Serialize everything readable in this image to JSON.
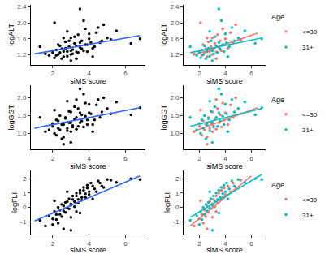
{
  "chart_data": [
    {
      "type": "scatter",
      "x_label": "siMS score",
      "y_label": "logALT",
      "xlim": [
        0.8,
        7.1
      ],
      "xticks": [
        2,
        4,
        6
      ],
      "ylim": [
        0.95,
        2.45
      ],
      "yticks": [
        1.2,
        1.6,
        {
          "value": 2,
          "label": "2.0"
        },
        2.4
      ],
      "grid": false,
      "series": [
        {
          "color": "#000000",
          "x": [
            1.6,
            2.0,
            2.2,
            2.3,
            2.4,
            2.5,
            2.6,
            2.7,
            2.8,
            2.9,
            3.0,
            3.0,
            3.1,
            3.2,
            3.3,
            3.4,
            3.5,
            3.6,
            3.7,
            3.8,
            3.9,
            4.0,
            4.2,
            4.4,
            4.6,
            4.8,
            5.2,
            2.1,
            2.6,
            3.3,
            1.3,
            1.8,
            2.0,
            2.1,
            2.2,
            2.3,
            2.4,
            2.5,
            2.6,
            2.7,
            2.8,
            2.9,
            3.0,
            3.1,
            3.2,
            3.3,
            3.4,
            3.5,
            3.6,
            3.7,
            3.8,
            3.9,
            4.0,
            4.1,
            4.3,
            4.5,
            4.7,
            5.0,
            5.5,
            6.3,
            6.8,
            3.5,
            2.8,
            4.2,
            3.0
          ],
          "y": [
            1.22,
            1.3,
            1.18,
            1.45,
            1.25,
            1.35,
            1.15,
            1.52,
            1.28,
            1.4,
            1.2,
            1.62,
            1.33,
            1.48,
            1.27,
            1.7,
            1.38,
            1.55,
            1.3,
            1.85,
            1.45,
            1.6,
            1.36,
            1.75,
            1.5,
            1.95,
            1.58,
            2.0,
            1.62,
            1.1,
            1.4,
            1.18,
            1.25,
            1.12,
            1.32,
            1.2,
            1.42,
            1.1,
            1.28,
            1.36,
            1.16,
            1.55,
            1.3,
            1.22,
            1.65,
            1.42,
            1.25,
            1.5,
            1.35,
            2.05,
            1.45,
            1.28,
            1.72,
            1.5,
            1.4,
            1.88,
            1.55,
            1.62,
            1.8,
            1.48,
            1.6,
            2.35,
            1.78,
            1.15,
            1.05
          ],
          "fit": {
            "color": "#3366ff",
            "x": [
              1.0,
              6.8
            ],
            "y": [
              1.22,
              1.68
            ]
          }
        }
      ]
    },
    {
      "type": "scatter",
      "x_label": "siMS score",
      "y_label": "logALT",
      "xlim": [
        0.8,
        7.1
      ],
      "xticks": [
        2,
        4,
        6
      ],
      "ylim": [
        0.95,
        2.45
      ],
      "yticks": [
        1.2,
        1.6,
        {
          "value": 2,
          "label": "2.0"
        },
        2.4
      ],
      "grid": false,
      "legend": "right",
      "legend_title": "Age",
      "series": [
        {
          "name": "<=30",
          "color": "#F8766D",
          "x": [
            1.6,
            2.0,
            2.2,
            2.3,
            2.4,
            2.5,
            2.6,
            2.7,
            2.8,
            2.9,
            3.0,
            3.0,
            3.1,
            3.2,
            3.3,
            3.4,
            3.5,
            3.6,
            3.7,
            3.8,
            3.9,
            4.0,
            4.2,
            4.4,
            4.6,
            4.8,
            5.2,
            2.1,
            2.6,
            3.3
          ],
          "y": [
            1.22,
            1.3,
            1.18,
            1.45,
            1.25,
            1.35,
            1.15,
            1.52,
            1.28,
            1.4,
            1.2,
            1.62,
            1.33,
            1.48,
            1.27,
            1.7,
            1.38,
            1.55,
            1.3,
            1.85,
            1.45,
            1.6,
            1.36,
            1.75,
            1.5,
            1.95,
            1.58,
            2.0,
            1.62,
            1.1
          ],
          "fit": {
            "x": [
              1.5,
              6.5
            ],
            "y": [
              1.18,
              1.74
            ]
          }
        },
        {
          "name": "31+",
          "color": "#00BFC4",
          "x": [
            1.3,
            1.8,
            2.0,
            2.1,
            2.2,
            2.3,
            2.4,
            2.5,
            2.6,
            2.7,
            2.8,
            2.9,
            3.0,
            3.1,
            3.2,
            3.3,
            3.4,
            3.5,
            3.6,
            3.7,
            3.8,
            3.9,
            4.0,
            4.1,
            4.3,
            4.5,
            4.7,
            5.0,
            5.5,
            6.3,
            6.8,
            3.5,
            2.8,
            4.2,
            3.0
          ],
          "y": [
            1.4,
            1.18,
            1.25,
            1.12,
            1.32,
            1.2,
            1.42,
            1.1,
            1.28,
            1.36,
            1.16,
            1.55,
            1.3,
            1.22,
            1.65,
            1.42,
            1.25,
            1.5,
            1.35,
            2.05,
            1.45,
            1.28,
            1.72,
            1.5,
            1.4,
            1.88,
            1.55,
            1.62,
            1.8,
            1.48,
            1.6,
            2.35,
            1.78,
            1.15,
            1.05
          ],
          "fit": {
            "x": [
              1.3,
              6.8
            ],
            "y": [
              1.25,
              1.62
            ]
          }
        }
      ]
    },
    {
      "type": "scatter",
      "x_label": "siMS score",
      "y_label": "logGGT",
      "xlim": [
        0.8,
        7.1
      ],
      "xticks": [
        2,
        4,
        6
      ],
      "ylim": [
        0.55,
        2.35
      ],
      "yticks": [
        {
          "value": 1,
          "label": "1.0"
        },
        1.5,
        {
          "value": 2,
          "label": "2.0"
        }
      ],
      "grid": false,
      "series": [
        {
          "color": "#000000",
          "x": [
            1.6,
            2.0,
            2.2,
            2.3,
            2.4,
            2.5,
            2.6,
            2.7,
            2.8,
            2.9,
            3.0,
            3.0,
            3.1,
            3.2,
            3.3,
            3.4,
            3.5,
            3.6,
            3.7,
            3.8,
            3.9,
            4.0,
            4.2,
            4.4,
            4.6,
            4.8,
            5.2,
            2.1,
            2.6,
            3.3,
            1.3,
            1.8,
            2.0,
            2.1,
            2.2,
            2.3,
            2.4,
            2.5,
            2.6,
            2.7,
            2.8,
            2.9,
            3.0,
            3.1,
            3.2,
            3.3,
            3.4,
            3.5,
            3.6,
            3.7,
            3.8,
            3.9,
            4.0,
            4.1,
            4.3,
            4.5,
            4.7,
            5.0,
            5.5,
            6.3,
            6.8,
            3.5,
            2.8,
            4.2,
            3.0
          ],
          "y": [
            1.05,
            1.2,
            0.95,
            1.35,
            1.1,
            1.25,
            0.9,
            1.45,
            1.15,
            1.3,
            1.05,
            1.6,
            1.22,
            1.4,
            1.12,
            1.7,
            1.3,
            1.52,
            1.18,
            1.85,
            1.38,
            1.58,
            1.25,
            1.8,
            1.45,
            2.0,
            1.55,
            1.65,
            0.7,
            1.95,
            1.45,
            1.1,
            1.28,
            1.0,
            1.38,
            1.15,
            1.5,
            0.85,
            1.25,
            1.42,
            1.08,
            1.62,
            1.3,
            1.18,
            1.75,
            1.45,
            1.2,
            1.58,
            1.35,
            2.1,
            1.48,
            1.25,
            1.82,
            1.55,
            1.38,
            1.95,
            1.6,
            1.7,
            1.88,
            1.52,
            1.72,
            2.25,
            1.9,
            1.05,
            0.75
          ],
          "fit": {
            "color": "#3366ff",
            "x": [
              1.0,
              6.8
            ],
            "y": [
              1.15,
              1.72
            ]
          }
        }
      ]
    },
    {
      "type": "scatter",
      "x_label": "siMS score",
      "y_label": "logGGT",
      "xlim": [
        0.8,
        7.1
      ],
      "xticks": [
        2,
        4,
        6
      ],
      "ylim": [
        0.55,
        2.35
      ],
      "yticks": [
        {
          "value": 1,
          "label": "1.0"
        },
        1.5,
        {
          "value": 2,
          "label": "2.0"
        }
      ],
      "grid": false,
      "legend": "right",
      "legend_title": "Age",
      "series": [
        {
          "name": "<=30",
          "color": "#F8766D",
          "x": [
            1.6,
            2.0,
            2.2,
            2.3,
            2.4,
            2.5,
            2.6,
            2.7,
            2.8,
            2.9,
            3.0,
            3.0,
            3.1,
            3.2,
            3.3,
            3.4,
            3.5,
            3.6,
            3.7,
            3.8,
            3.9,
            4.0,
            4.2,
            4.4,
            4.6,
            4.8,
            5.2,
            2.1,
            2.6,
            3.3
          ],
          "y": [
            1.05,
            1.2,
            0.95,
            1.35,
            1.1,
            1.25,
            0.9,
            1.45,
            1.15,
            1.3,
            1.05,
            1.6,
            1.22,
            1.4,
            1.12,
            1.7,
            1.3,
            1.52,
            1.18,
            1.85,
            1.38,
            1.58,
            1.25,
            1.8,
            1.45,
            2.0,
            1.55,
            1.65,
            0.7,
            1.95
          ],
          "fit": {
            "x": [
              1.5,
              6.5
            ],
            "y": [
              1.05,
              1.72
            ]
          }
        },
        {
          "name": "31+",
          "color": "#00BFC4",
          "x": [
            1.3,
            1.8,
            2.0,
            2.1,
            2.2,
            2.3,
            2.4,
            2.5,
            2.6,
            2.7,
            2.8,
            2.9,
            3.0,
            3.1,
            3.2,
            3.3,
            3.4,
            3.5,
            3.6,
            3.7,
            3.8,
            3.9,
            4.0,
            4.1,
            4.3,
            4.5,
            4.7,
            5.0,
            5.5,
            6.3,
            6.8,
            3.5,
            2.8,
            4.2,
            3.0
          ],
          "y": [
            1.45,
            1.1,
            1.28,
            1.0,
            1.38,
            1.15,
            1.5,
            0.85,
            1.25,
            1.42,
            1.08,
            1.62,
            1.3,
            1.18,
            1.75,
            1.45,
            1.2,
            1.58,
            1.35,
            2.1,
            1.48,
            1.25,
            1.82,
            1.55,
            1.38,
            1.95,
            1.6,
            1.7,
            1.88,
            1.52,
            1.72,
            2.25,
            1.9,
            1.05,
            0.75
          ],
          "fit": {
            "x": [
              1.3,
              6.8
            ],
            "y": [
              1.2,
              1.7
            ]
          }
        }
      ]
    },
    {
      "type": "scatter",
      "x_label": "siMS score",
      "y_label": "logFLI",
      "xlim": [
        0.8,
        7.1
      ],
      "xticks": [
        2,
        4,
        6
      ],
      "ylim": [
        -1.9,
        2.6
      ],
      "yticks": [
        -1,
        0,
        1,
        2
      ],
      "grid": false,
      "series": [
        {
          "color": "#000000",
          "x": [
            1.6,
            2.0,
            2.2,
            2.3,
            2.4,
            2.5,
            2.6,
            2.7,
            2.8,
            2.9,
            3.0,
            3.0,
            3.1,
            3.2,
            3.3,
            3.4,
            3.5,
            3.6,
            3.7,
            3.8,
            3.9,
            4.0,
            4.2,
            4.4,
            4.6,
            4.8,
            5.2,
            2.1,
            2.6,
            3.3,
            1.3,
            1.8,
            2.0,
            2.1,
            2.2,
            2.3,
            2.4,
            2.5,
            2.6,
            2.7,
            2.8,
            2.9,
            3.0,
            3.1,
            3.2,
            3.3,
            3.4,
            3.5,
            3.6,
            3.7,
            3.8,
            3.9,
            4.0,
            4.1,
            4.3,
            4.5,
            4.7,
            5.0,
            5.5,
            6.3,
            6.8,
            3.5,
            2.8,
            4.2,
            3.0
          ],
          "y": [
            -1.3,
            -0.8,
            -0.5,
            -1.1,
            -0.2,
            -0.65,
            0.1,
            -0.35,
            0.4,
            -0.1,
            0.25,
            -0.7,
            0.55,
            0.05,
            0.8,
            0.3,
            1.0,
            0.5,
            1.2,
            0.7,
            1.35,
            0.9,
            1.5,
            1.1,
            1.7,
            1.4,
            1.9,
            0.45,
            -1.5,
            -0.3,
            -0.9,
            -0.6,
            -1.2,
            -0.3,
            -0.85,
            0.0,
            -0.5,
            0.2,
            -0.25,
            0.35,
            -0.05,
            0.6,
            0.15,
            0.8,
            0.4,
            1.0,
            0.55,
            1.2,
            0.7,
            1.4,
            0.95,
            1.55,
            1.1,
            1.7,
            1.3,
            1.85,
            1.5,
            1.95,
            1.75,
            2.0,
            1.95,
            -0.4,
            1.1,
            0.6,
            -1.6
          ],
          "fit": {
            "color": "#3366ff",
            "x": [
              1.0,
              6.8
            ],
            "y": [
              -0.95,
              2.2
            ]
          }
        }
      ]
    },
    {
      "type": "scatter",
      "x_label": "siMS score",
      "y_label": "logFLI",
      "xlim": [
        0.8,
        7.1
      ],
      "xticks": [
        2,
        4,
        6
      ],
      "ylim": [
        -1.9,
        2.6
      ],
      "yticks": [
        -1,
        0,
        1,
        2
      ],
      "grid": false,
      "legend": "right",
      "legend_title": "Age",
      "series": [
        {
          "name": "<=30",
          "color": "#F8766D",
          "x": [
            1.6,
            2.0,
            2.2,
            2.3,
            2.4,
            2.5,
            2.6,
            2.7,
            2.8,
            2.9,
            3.0,
            3.0,
            3.1,
            3.2,
            3.3,
            3.4,
            3.5,
            3.6,
            3.7,
            3.8,
            3.9,
            4.0,
            4.2,
            4.4,
            4.6,
            4.8,
            5.2,
            2.1,
            2.6,
            3.3
          ],
          "y": [
            -1.3,
            -0.8,
            -0.5,
            -1.1,
            -0.2,
            -0.65,
            0.1,
            -0.35,
            0.4,
            -0.1,
            0.25,
            -0.7,
            0.55,
            0.05,
            0.8,
            0.3,
            1.0,
            0.5,
            1.2,
            0.7,
            1.35,
            0.9,
            1.5,
            1.1,
            1.7,
            1.4,
            1.9,
            0.45,
            -1.5,
            -0.3
          ],
          "fit": {
            "x": [
              1.3,
              6.0
            ],
            "y": [
              -1.3,
              2.2
            ]
          }
        },
        {
          "name": "31+",
          "color": "#00BFC4",
          "x": [
            1.3,
            1.8,
            2.0,
            2.1,
            2.2,
            2.3,
            2.4,
            2.5,
            2.6,
            2.7,
            2.8,
            2.9,
            3.0,
            3.1,
            3.2,
            3.3,
            3.4,
            3.5,
            3.6,
            3.7,
            3.8,
            3.9,
            4.0,
            4.1,
            4.3,
            4.5,
            4.7,
            5.0,
            5.5,
            6.3,
            6.8,
            3.5,
            2.8,
            4.2,
            3.0
          ],
          "y": [
            -0.9,
            -0.6,
            -1.2,
            -0.3,
            -0.85,
            0.0,
            -0.5,
            0.2,
            -0.25,
            0.35,
            -0.05,
            0.6,
            0.15,
            0.8,
            0.4,
            1.0,
            0.55,
            1.2,
            0.7,
            1.4,
            0.95,
            1.55,
            1.1,
            1.7,
            1.3,
            1.85,
            1.5,
            1.95,
            1.75,
            2.0,
            1.95,
            -0.4,
            1.1,
            0.6,
            -1.6
          ],
          "fit": {
            "x": [
              1.3,
              6.8
            ],
            "y": [
              -0.7,
              2.3
            ]
          }
        }
      ]
    }
  ]
}
